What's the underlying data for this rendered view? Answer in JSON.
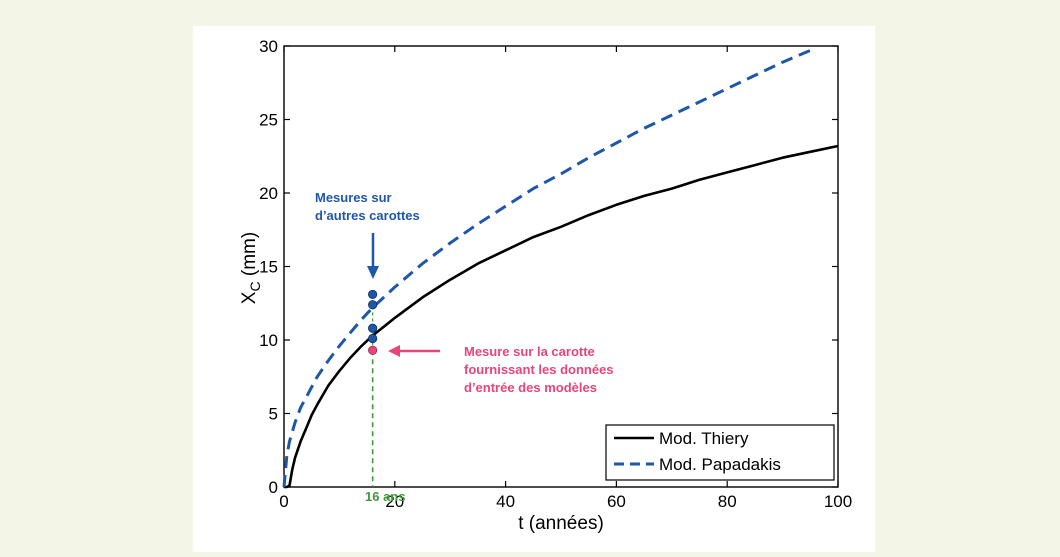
{
  "chart_data": {
    "type": "line",
    "title": "",
    "xlabel": "t (années)",
    "ylabel": "X",
    "ylabel_sub": "C",
    "ylabel_unit": " (mm)",
    "xlim": [
      0,
      100
    ],
    "ylim": [
      0,
      30
    ],
    "xticks": [
      "0",
      "20",
      "40",
      "60",
      "80",
      "100"
    ],
    "yticks": [
      "0",
      "5",
      "10",
      "15",
      "20",
      "25",
      "30"
    ],
    "grid": false,
    "legend_position": "bottom-right",
    "series": [
      {
        "name": "Mod. Thiery",
        "style": "solid",
        "color": "#000000",
        "x": [
          0,
          0.5,
          1,
          1.5,
          2,
          3,
          4,
          5,
          6,
          8,
          10,
          12,
          14,
          16,
          18,
          20,
          25,
          30,
          35,
          40,
          45,
          50,
          55,
          60,
          65,
          70,
          75,
          80,
          85,
          90,
          95,
          100
        ],
        "y": [
          0,
          0,
          0.1,
          1.2,
          2.0,
          3.1,
          4.0,
          4.9,
          5.6,
          6.9,
          7.9,
          8.8,
          9.6,
          10.3,
          10.9,
          11.5,
          12.9,
          14.1,
          15.2,
          16.1,
          17.0,
          17.7,
          18.5,
          19.2,
          19.8,
          20.3,
          20.9,
          21.4,
          21.9,
          22.4,
          22.8,
          23.2
        ]
      },
      {
        "name": "Mod. Papadakis",
        "style": "dashed",
        "color": "#1f57a8",
        "x": [
          0,
          0.5,
          1,
          2,
          3,
          4,
          5,
          6,
          8,
          10,
          12,
          14,
          16,
          18,
          20,
          25,
          30,
          35,
          40,
          45,
          50,
          55,
          60,
          65,
          70,
          75,
          80,
          85,
          90,
          95
        ],
        "y": [
          0,
          2.1,
          3.1,
          4.4,
          5.4,
          6.1,
          6.8,
          7.5,
          8.6,
          9.6,
          10.5,
          11.4,
          12.2,
          12.9,
          13.6,
          15.2,
          16.6,
          17.9,
          19.1,
          20.3,
          21.3,
          22.4,
          23.4,
          24.4,
          25.3,
          26.2,
          27.1,
          28.0,
          28.9,
          29.7
        ]
      }
    ],
    "measurements_other_cores": {
      "x": [
        16,
        16,
        16,
        16
      ],
      "y": [
        13.1,
        12.4,
        10.8,
        10.1
      ],
      "color": "#1f57a8"
    },
    "measurement_input_core": {
      "x": 16,
      "y": 9.3,
      "color": "#e8457a"
    },
    "marker_line": {
      "x": 16,
      "label": "16 ans",
      "color": "#3f9a3a"
    },
    "annotations": {
      "blue_line1": "Mesures sur",
      "blue_line2": "d’autres carottes",
      "pink_line1": "Mesure sur la carotte",
      "pink_line2": "fournissant les données",
      "pink_line3": "d’entrée des modèles"
    }
  }
}
